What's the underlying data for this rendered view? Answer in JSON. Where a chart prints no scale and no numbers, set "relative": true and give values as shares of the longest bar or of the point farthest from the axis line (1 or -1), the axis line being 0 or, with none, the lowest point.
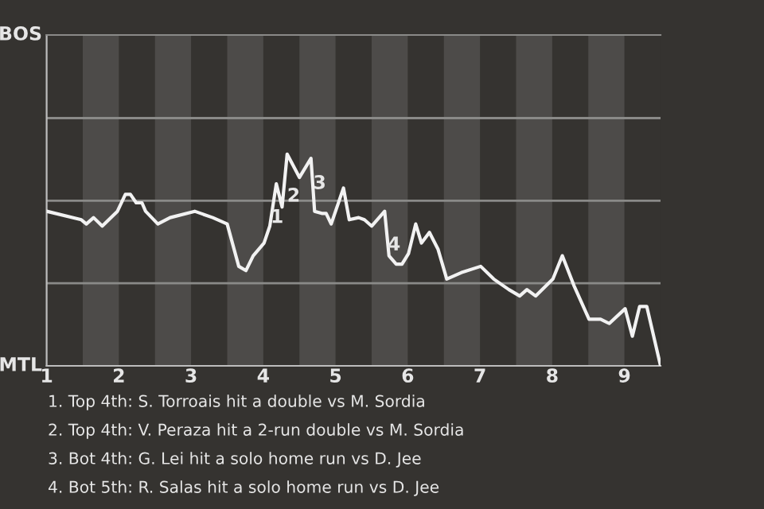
{
  "chart_data": {
    "type": "line",
    "relative": true,
    "x": [
      1.0,
      1.48,
      1.55,
      1.65,
      1.77,
      1.98,
      2.09,
      2.16,
      2.24,
      2.32,
      2.37,
      2.54,
      2.71,
      3.05,
      3.3,
      3.5,
      3.66,
      3.76,
      3.86,
      4.01,
      4.09,
      4.18,
      4.26,
      4.33,
      4.5,
      4.66,
      4.71,
      4.81,
      4.87,
      4.94,
      5.11,
      5.19,
      5.32,
      5.4,
      5.5,
      5.68,
      5.74,
      5.84,
      5.92,
      6.01,
      6.11,
      6.19,
      6.3,
      6.42,
      6.54,
      6.74,
      7.01,
      7.19,
      7.4,
      7.55,
      7.65,
      7.77,
      8.01,
      8.14,
      8.3,
      8.51,
      8.67,
      8.79,
      9.01,
      9.11,
      9.21,
      9.31,
      9.5
    ],
    "series": [
      {
        "color": "#f2f2f2",
        "values": [
          0.73,
          0.69,
          0.67,
          0.7,
          0.66,
          0.73,
          0.81,
          0.81,
          0.77,
          0.77,
          0.73,
          0.67,
          0.7,
          0.73,
          0.7,
          0.67,
          0.47,
          0.45,
          0.52,
          0.58,
          0.66,
          0.86,
          0.75,
          1,
          0.89,
          0.98,
          0.73,
          0.72,
          0.72,
          0.67,
          0.84,
          0.69,
          0.7,
          0.69,
          0.66,
          0.73,
          0.52,
          0.48,
          0.48,
          0.53,
          0.67,
          0.58,
          0.63,
          0.55,
          0.41,
          0.44,
          0.47,
          0.41,
          0.36,
          0.33,
          0.36,
          0.33,
          0.41,
          0.52,
          0.38,
          0.22,
          0.22,
          0.2,
          0.27,
          0.14,
          0.28,
          0.28,
          0
        ]
      }
    ],
    "xlim": [
      1,
      9.5
    ],
    "xticks": [
      1,
      2,
      3,
      4,
      5,
      6,
      7,
      8,
      9
    ],
    "ref_lines": [
      {
        "axis": "y",
        "value": 0.39,
        "color": "#8a8a88"
      },
      {
        "axis": "y",
        "value": 0.78,
        "color": "#8a8a88"
      },
      {
        "axis": "y",
        "value": 1.17,
        "color": "#8a8a88"
      }
    ],
    "bands": [
      {
        "axis": "x",
        "from": 1.5,
        "to": 2,
        "color": "#4d4b49"
      },
      {
        "axis": "x",
        "from": 2.5,
        "to": 3,
        "color": "#4d4b49"
      },
      {
        "axis": "x",
        "from": 3.5,
        "to": 4,
        "color": "#4d4b49"
      },
      {
        "axis": "x",
        "from": 4.5,
        "to": 5,
        "color": "#4d4b49"
      },
      {
        "axis": "x",
        "from": 5.5,
        "to": 6,
        "color": "#4d4b49"
      },
      {
        "axis": "x",
        "from": 6.5,
        "to": 7,
        "color": "#4d4b49"
      },
      {
        "axis": "x",
        "from": 7.5,
        "to": 8,
        "color": "#4d4b49"
      },
      {
        "axis": "x",
        "from": 8.5,
        "to": 9,
        "color": "#4d4b49"
      }
    ],
    "annotations": [
      {
        "text": "BOS"
      },
      {
        "text": "MTL"
      },
      {
        "text": "1",
        "x": 4.19,
        "y": 0.7
      },
      {
        "text": "2",
        "x": 4.42,
        "y": 0.8
      },
      {
        "text": "3",
        "x": 4.78,
        "y": 0.86
      },
      {
        "text": "4",
        "x": 5.81,
        "y": 0.57
      },
      "1. Top 4th: S. Torroais hit a double vs M. Sordia",
      "2. Top 4th: V. Peraza hit a 2-run double vs M. Sordia",
      "3. Bot 4th: G. Lei hit a solo home run vs D. Jee",
      "4. Bot 5th: R. Salas hit a solo home run vs D. Jee"
    ]
  }
}
